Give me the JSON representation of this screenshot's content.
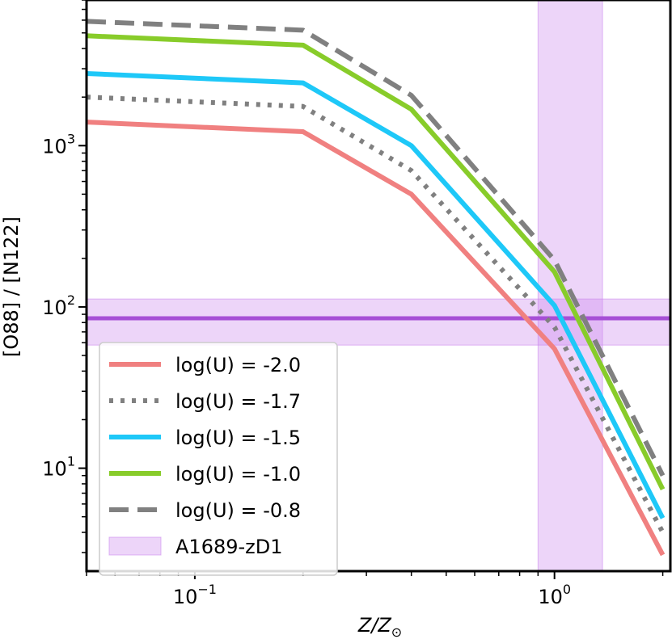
{
  "chart_data": {
    "type": "line",
    "x_scale": "log",
    "y_scale": "log",
    "xlim": [
      0.05,
      2.1
    ],
    "ylim": [
      2.3,
      8000
    ],
    "xlabel_main": "Z/Z",
    "xlabel_sub": "⊙",
    "ylabel": "[O88] / [N122]",
    "x_ticks": [
      {
        "value": 0.1,
        "base": "10",
        "exp": "−1"
      },
      {
        "value": 1.0,
        "base": "10",
        "exp": "0"
      }
    ],
    "y_ticks": [
      {
        "value": 10,
        "base": "10",
        "exp": "1"
      },
      {
        "value": 100,
        "base": "10",
        "exp": "2"
      },
      {
        "value": 1000,
        "base": "10",
        "exp": "3"
      }
    ],
    "x": [
      0.05,
      0.2,
      0.4,
      1.0,
      2.0
    ],
    "series": [
      {
        "name": "log(U) = -2.0",
        "color": "#f08080",
        "dash": "solid",
        "values": [
          1400,
          1220,
          500,
          55,
          2.9
        ]
      },
      {
        "name": "log(U) = -1.7",
        "color": "#808080",
        "dash": "dotted",
        "values": [
          2000,
          1750,
          700,
          75,
          4.0
        ]
      },
      {
        "name": "log(U) = -1.5",
        "color": "#1ec8f8",
        "dash": "solid",
        "values": [
          2800,
          2450,
          1000,
          102,
          4.9
        ]
      },
      {
        "name": "log(U) = -1.0",
        "color": "#88cc2a",
        "dash": "solid",
        "values": [
          4800,
          4200,
          1680,
          165,
          7.4
        ]
      },
      {
        "name": "log(U) = -0.8",
        "color": "#808080",
        "dash": "dashed",
        "values": [
          5900,
          5200,
          2050,
          195,
          9.0
        ]
      }
    ],
    "observation": {
      "name": "A1689-zD1",
      "color": "#cc88ee",
      "line_color": "#a64fd6",
      "value": 85,
      "value_range": [
        58,
        112
      ],
      "z_range": [
        0.9,
        1.36
      ]
    },
    "legend_position": "lower-left"
  }
}
